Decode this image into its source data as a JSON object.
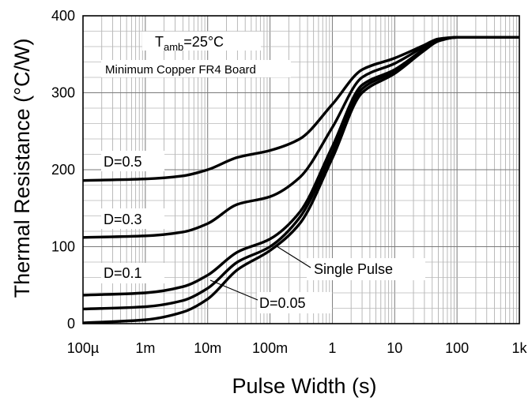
{
  "chart_data": {
    "type": "line",
    "title": "",
    "xlabel": "Pulse Width (s)",
    "ylabel": "Thermal Resistance (°C/W)",
    "x_scale": "log",
    "xlim": [
      0.0001,
      1000
    ],
    "ylim": [
      0,
      400
    ],
    "x_ticks": [
      {
        "value": 0.0001,
        "label": "100µ"
      },
      {
        "value": 0.001,
        "label": "1m"
      },
      {
        "value": 0.01,
        "label": "10m"
      },
      {
        "value": 0.1,
        "label": "100m"
      },
      {
        "value": 1,
        "label": "1"
      },
      {
        "value": 10,
        "label": "10"
      },
      {
        "value": 100,
        "label": "100"
      },
      {
        "value": 1000,
        "label": "1k"
      }
    ],
    "y_ticks": [
      {
        "value": 0,
        "label": "0"
      },
      {
        "value": 100,
        "label": "100"
      },
      {
        "value": 200,
        "label": "200"
      },
      {
        "value": 300,
        "label": "300"
      },
      {
        "value": 400,
        "label": "400"
      }
    ],
    "grid": true,
    "annotations": {
      "tamb_main": "T",
      "tamb_sub": "amb",
      "tamb_rest": "=25°C",
      "board": "Minimum Copper FR4 Board"
    },
    "series": [
      {
        "name": "D=0.5",
        "x": [
          0.0001,
          0.001,
          0.004,
          0.01,
          0.03,
          0.1,
          0.3,
          1,
          3,
          10,
          30,
          50,
          100,
          1000
        ],
        "y": [
          186,
          188,
          192,
          200,
          216,
          225,
          240,
          285,
          330,
          345,
          362,
          370,
          372,
          372
        ]
      },
      {
        "name": "D=0.3",
        "x": [
          0.0001,
          0.001,
          0.004,
          0.01,
          0.03,
          0.1,
          0.3,
          1,
          3,
          10,
          30,
          50,
          100,
          1000
        ],
        "y": [
          112,
          114,
          119,
          130,
          155,
          165,
          190,
          255,
          320,
          338,
          360,
          369,
          372,
          372
        ]
      },
      {
        "name": "D=0.1",
        "x": [
          0.0001,
          0.001,
          0.004,
          0.01,
          0.03,
          0.1,
          0.3,
          1,
          3,
          10,
          30,
          50,
          100,
          1000
        ],
        "y": [
          37,
          40,
          48,
          63,
          93,
          110,
          145,
          230,
          310,
          330,
          357,
          368,
          372,
          372
        ]
      },
      {
        "name": "D=0.05",
        "x": [
          0.0001,
          0.001,
          0.004,
          0.01,
          0.03,
          0.1,
          0.3,
          1,
          3,
          10,
          30,
          50,
          100,
          1000
        ],
        "y": [
          19,
          22,
          30,
          46,
          80,
          100,
          138,
          222,
          305,
          328,
          356,
          368,
          372,
          372
        ]
      },
      {
        "name": "Single Pulse",
        "x": [
          0.0001,
          0.001,
          0.004,
          0.01,
          0.03,
          0.1,
          0.3,
          1,
          3,
          10,
          30,
          50,
          100,
          1000
        ],
        "y": [
          1,
          5,
          15,
          32,
          70,
          95,
          130,
          215,
          300,
          325,
          355,
          367,
          372,
          372
        ]
      }
    ]
  }
}
